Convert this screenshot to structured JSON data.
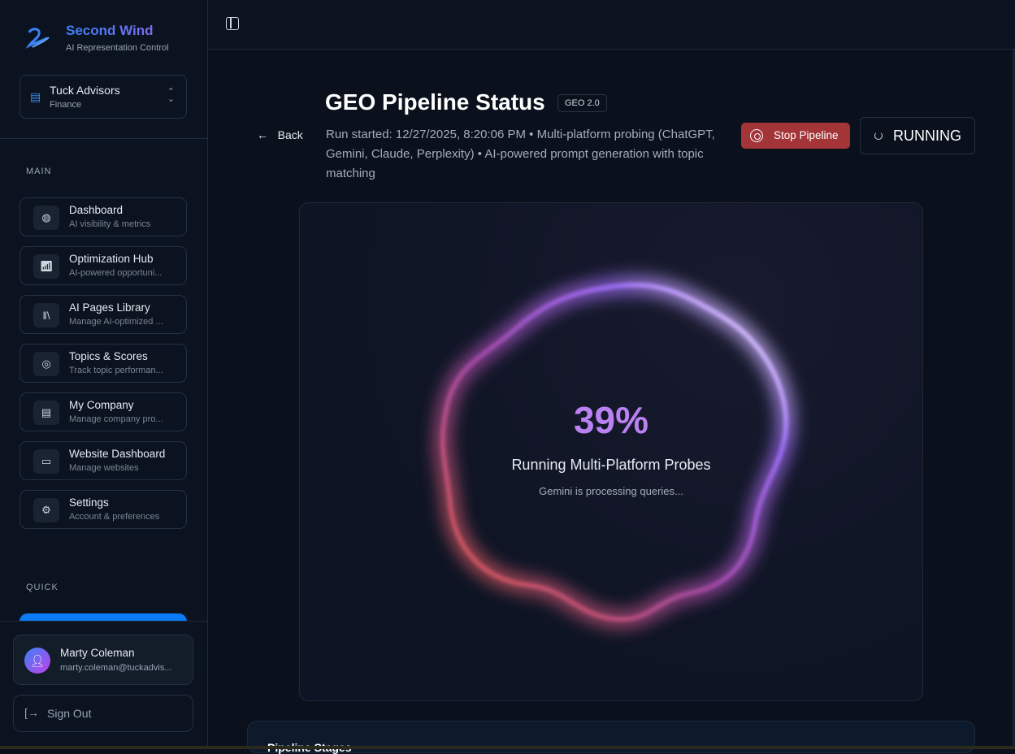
{
  "sidebar": {
    "brand": "Second Wind",
    "tagline": "AI Representation Control",
    "org": {
      "name": "Tuck Advisors",
      "industry": "Finance"
    },
    "main_label": "MAIN",
    "quick_label": "QUICK",
    "items": [
      {
        "label": "Dashboard",
        "sub": "AI visibility & metrics",
        "icon": "globe-icon"
      },
      {
        "label": "Optimization Hub",
        "sub": "AI-powered opportuni...",
        "icon": "chart-icon"
      },
      {
        "label": "AI Pages Library",
        "sub": "Manage AI-optimized ...",
        "icon": "library-icon"
      },
      {
        "label": "Topics & Scores",
        "sub": "Track topic performan...",
        "icon": "target-icon"
      },
      {
        "label": "My Company",
        "sub": "Manage company pro...",
        "icon": "building-icon"
      },
      {
        "label": "Website Dashboard",
        "sub": "Manage websites",
        "icon": "laptop-icon"
      },
      {
        "label": "Settings",
        "sub": "Account & preferences",
        "icon": "gear-icon"
      }
    ],
    "user": {
      "name": "Marty Coleman",
      "email": "marty.coleman@tuckadvis..."
    },
    "sign_out": "Sign Out"
  },
  "header": {
    "back": "Back",
    "title": "GEO Pipeline Status",
    "badge": "GEO 2.0",
    "description": "Run started: 12/27/2025, 8:20:06 PM • Multi-platform probing (ChatGPT, Gemini, Claude, Perplexity) • AI-powered prompt generation with topic matching",
    "stop": "Stop Pipeline",
    "status": "RUNNING"
  },
  "progress": {
    "percent_label": "39%",
    "value": 39,
    "phase": "Running Multi-Platform Probes",
    "message": "Gemini is processing queries..."
  },
  "stages": {
    "title": "Pipeline Stages"
  }
}
